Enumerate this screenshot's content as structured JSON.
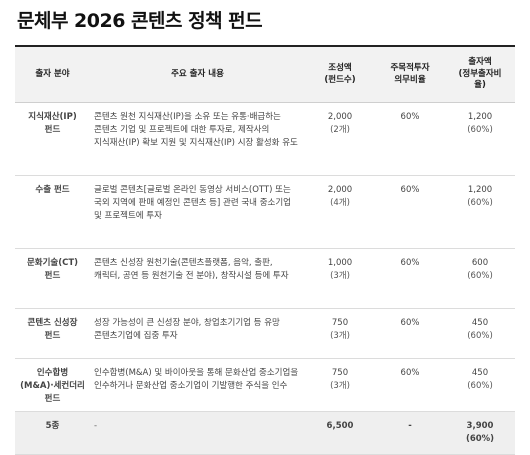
{
  "title": "문체부 2026 콘텐츠 정책 펀드",
  "headers": {
    "category": "출자 분야",
    "content": "주요 출자 내용",
    "size_line1": "조성액",
    "size_line2": "(펀드수)",
    "ratio_line1": "주목적투자",
    "ratio_line2": "의무비율",
    "invest_line1": "출자액",
    "invest_line2": "(정부출자비",
    "invest_line3": "율)"
  },
  "rows": [
    {
      "cat1": "지식재산(IP)",
      "cat2": "펀드",
      "desc": "콘텐츠 원천 지식재산(IP)을 소유 또는 유통·배급하는 콘텐츠 기업 및 프로젝트에 대한 투자로, 제작사의 지식재산(IP) 확보 지원 및 지식재산(IP) 시장 활성화 유도",
      "size": "2,000",
      "count": "(2개)",
      "ratio": "60%",
      "invest": "1,200",
      "invest_ratio": "(60%)"
    },
    {
      "cat1": "수출 펀드",
      "cat2": "",
      "desc": "글로벌 콘텐츠[글로벌 온라인 동영상 서비스(OTT) 또는 국외 지역에 판매 예정인 콘텐츠 등] 관련 국내 중소기업 및 프로젝트에 투자",
      "size": "2,000",
      "count": "(4개)",
      "ratio": "60%",
      "invest": "1,200",
      "invest_ratio": "(60%)"
    },
    {
      "cat1": "문화기술(CT)",
      "cat2": "펀드",
      "desc": "콘텐츠 신성장 원천기술(콘텐츠플랫폼, 음악, 출판, 캐릭터, 공연 등 원천기술 전 분야), 창작시설 등에 투자",
      "size": "1,000",
      "count": "(3개)",
      "ratio": "60%",
      "invest": "600",
      "invest_ratio": "(60%)"
    },
    {
      "cat1": "콘텐츠 신성장",
      "cat2": "펀드",
      "desc": "성장 가능성이 큰 신성장 분야, 창업초기기업 등 유망 콘텐츠기업에 집중 투자",
      "size": "750",
      "count": "(3개)",
      "ratio": "60%",
      "invest": "450",
      "invest_ratio": "(60%)"
    },
    {
      "cat1": "인수합병",
      "cat2": "(M&A)·세컨더리 펀드",
      "desc": "인수합병(M&A) 및 바이아웃을 통해 문화산업 중소기업을 인수하거나 문화산업 중소기업이 기발행한 주식을 인수",
      "size": "750",
      "count": "(3개)",
      "ratio": "60%",
      "invest": "450",
      "invest_ratio": "(60%)"
    }
  ],
  "total": {
    "label": "5종",
    "desc": "-",
    "size": "6,500",
    "ratio": "-",
    "invest": "3,900",
    "invest_ratio": "(60%)"
  }
}
